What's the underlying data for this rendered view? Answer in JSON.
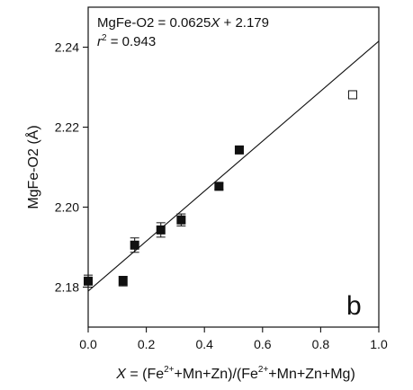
{
  "chart_data": {
    "type": "scatter",
    "xlabel": {
      "prefix": "X",
      "mid1": " = (Fe",
      "sup1": "2+",
      "mid2": "+Mn+Zn)/(Fe",
      "sup2": "2+",
      "mid3": "+Mn+Zn+Mg)"
    },
    "ylabel": "MgFe-O2 (Å)",
    "xlim": [
      0.0,
      1.0
    ],
    "ylim": [
      2.17,
      2.25
    ],
    "xticks": [
      "0.0",
      "0.2",
      "0.4",
      "0.6",
      "0.8",
      "1.0"
    ],
    "xtick_values": [
      0.0,
      0.2,
      0.4,
      0.6,
      0.8,
      1.0
    ],
    "yticks": [
      "2.18",
      "2.20",
      "2.22",
      "2.24"
    ],
    "ytick_values": [
      2.18,
      2.2,
      2.22,
      2.24
    ],
    "series": [
      {
        "marker": "filled-square",
        "x": [
          0.0,
          0.12,
          0.16,
          0.25,
          0.32,
          0.45,
          0.52
        ],
        "y": [
          2.1815,
          2.1815,
          2.1905,
          2.1943,
          2.1968,
          2.2052,
          2.2143
        ],
        "yerr": [
          0.0015,
          0.0012,
          0.0018,
          0.0018,
          0.0015,
          0.0008,
          0.0008
        ]
      },
      {
        "marker": "open-square",
        "x": [
          0.91
        ],
        "y": [
          2.2281
        ],
        "yerr": [
          0.0007
        ]
      }
    ],
    "fit_line": {
      "slope": 0.0625,
      "intercept": 2.179
    },
    "annotations": {
      "equation": {
        "prefix": "MgFe-O2 = 0.0625",
        "var": "X",
        "suffix": " + 2.179"
      },
      "r2": {
        "var": "r",
        "sup": "2",
        "value": " = 0.943"
      },
      "panel_label": "b"
    },
    "grid": false
  }
}
